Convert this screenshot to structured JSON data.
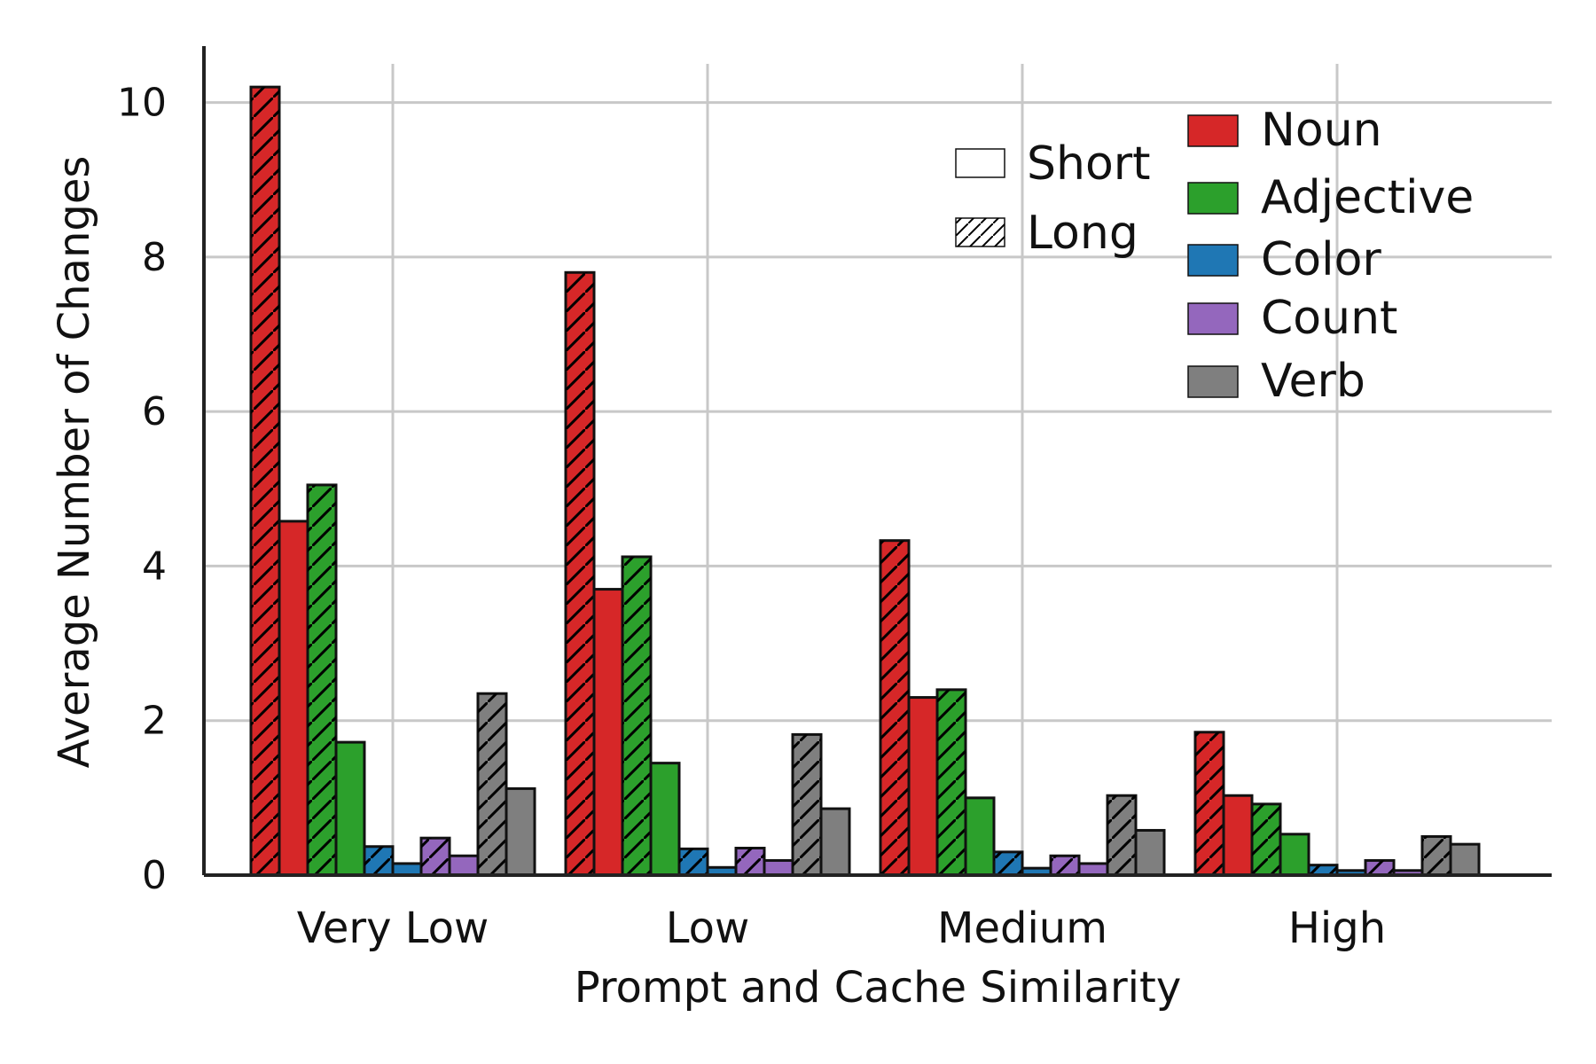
{
  "chart_data": {
    "type": "bar",
    "title": "",
    "xlabel": "Prompt and Cache Similarity",
    "ylabel": "Average Number of Changes",
    "categories": [
      "Very Low",
      "Low",
      "Medium",
      "High"
    ],
    "ylim": [
      0,
      10.5
    ],
    "yticks": [
      0,
      2,
      4,
      6,
      8,
      10
    ],
    "grid": true,
    "legend_position": "top-right",
    "length_legend": [
      {
        "name": "Short",
        "hatch": false
      },
      {
        "name": "Long",
        "hatch": true
      }
    ],
    "series": [
      {
        "name": "Noun",
        "color": "#d62728",
        "long": [
          10.2,
          7.8,
          4.33,
          1.85
        ],
        "short": [
          4.58,
          3.7,
          2.3,
          1.03
        ]
      },
      {
        "name": "Adjective",
        "color": "#2ca02c",
        "long": [
          5.05,
          4.12,
          2.4,
          0.92
        ],
        "short": [
          1.72,
          1.45,
          1.0,
          0.53
        ]
      },
      {
        "name": "Color",
        "color": "#1f77b4",
        "long": [
          0.37,
          0.34,
          0.3,
          0.13
        ],
        "short": [
          0.15,
          0.1,
          0.09,
          0.06
        ]
      },
      {
        "name": "Count",
        "color": "#9467bd",
        "long": [
          0.48,
          0.35,
          0.25,
          0.19
        ],
        "short": [
          0.25,
          0.19,
          0.15,
          0.06
        ]
      },
      {
        "name": "Verb",
        "color": "#7f7f7f",
        "long": [
          2.35,
          1.82,
          1.03,
          0.5
        ],
        "short": [
          1.12,
          0.86,
          0.58,
          0.4
        ]
      }
    ]
  }
}
